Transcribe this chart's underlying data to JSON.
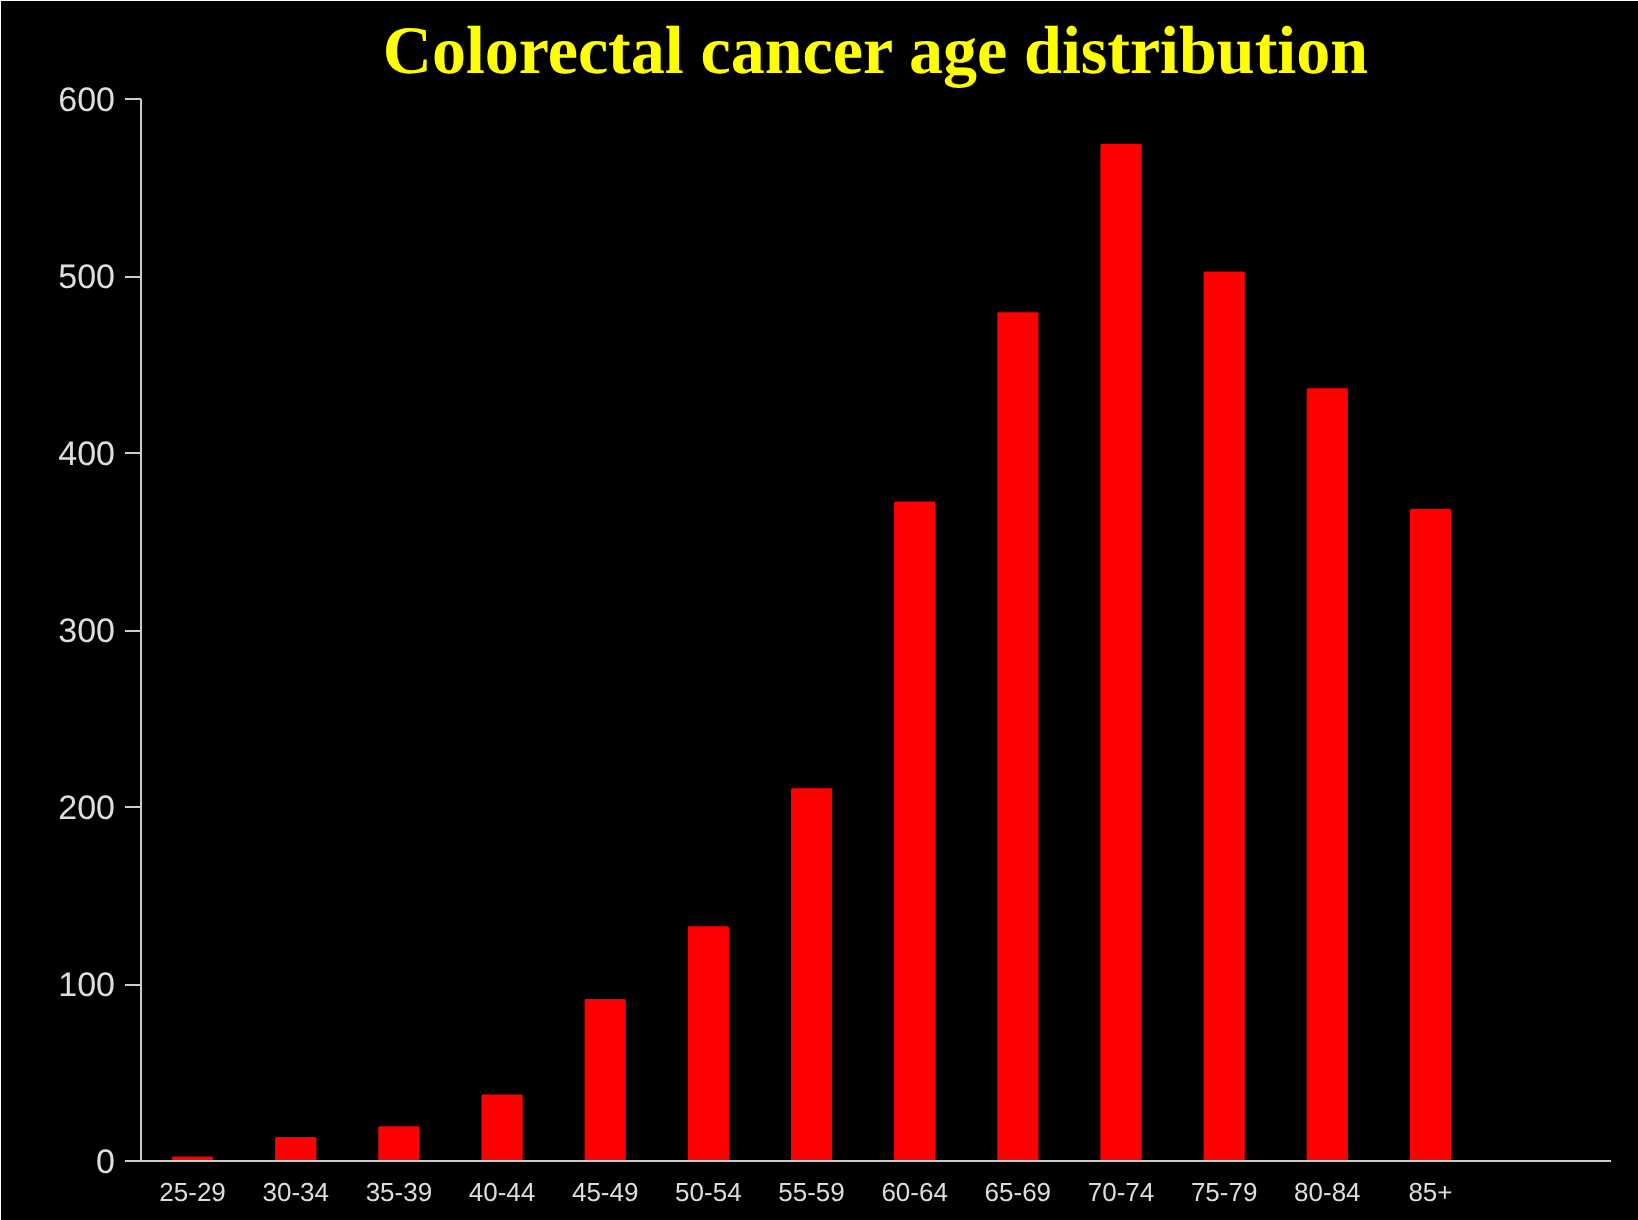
{
  "chart_data": {
    "type": "bar",
    "title": "Colorectal cancer age distribution",
    "categories": [
      "25-29",
      "30-34",
      "35-39",
      "40-44",
      "45-49",
      "50-54",
      "55-59",
      "60-64",
      "65-69",
      "70-74",
      "75-79",
      "80-84",
      "85+"
    ],
    "values": [
      2,
      13,
      19,
      37,
      91,
      132,
      210,
      372,
      479,
      574,
      502,
      436,
      368
    ],
    "color": "#ff0000",
    "ylim": [
      0,
      600
    ],
    "yticks": [
      0,
      100,
      200,
      300,
      400,
      500,
      600
    ],
    "grid": false
  }
}
